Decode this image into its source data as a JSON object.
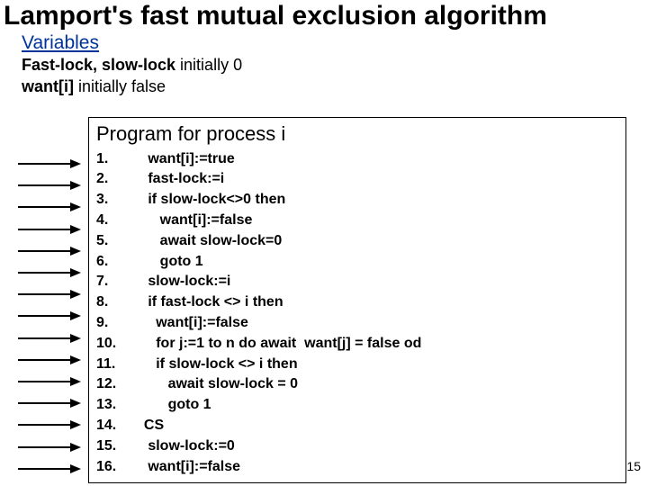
{
  "title": "Lamport's fast mutual exclusion algorithm",
  "section_heading": "Variables",
  "variables": {
    "line1_bold": "Fast-lock, slow-lock",
    "line1_rest": " initially 0",
    "line2_bold": "want[i]",
    "line2_rest": " initially false"
  },
  "program_title": "Program for process i",
  "code": [
    {
      "n": "1.",
      "t": "   want[i]:=true"
    },
    {
      "n": "2.",
      "t": "   fast-lock:=i"
    },
    {
      "n": "3.",
      "t": "   if slow-lock<>0 then"
    },
    {
      "n": "4.",
      "t": "      want[i]:=false"
    },
    {
      "n": "5.",
      "t": "      await slow-lock=0"
    },
    {
      "n": "6.",
      "t": "      goto 1"
    },
    {
      "n": "7.",
      "t": "   slow-lock:=i"
    },
    {
      "n": "8.",
      "t": "   if fast-lock <> i then"
    },
    {
      "n": "9.",
      "t": "     want[i]:=false"
    },
    {
      "n": "10.",
      "t": "     for j:=1 to n do await  want[j] = false od"
    },
    {
      "n": "11.",
      "t": "     if slow-lock <> i then"
    },
    {
      "n": "12.",
      "t": "        await slow-lock = 0"
    },
    {
      "n": "13.",
      "t": "        goto 1"
    },
    {
      "n": "14.",
      "t": "  CS"
    },
    {
      "n": "15.",
      "t": "   slow-lock:=0"
    },
    {
      "n": "16.",
      "t": "   want[i]:=false"
    }
  ],
  "arrow_count": 16,
  "page_number": "15",
  "colors": {
    "heading": "#003399",
    "text": "#000000",
    "border": "#000000",
    "background": "#ffffff"
  }
}
